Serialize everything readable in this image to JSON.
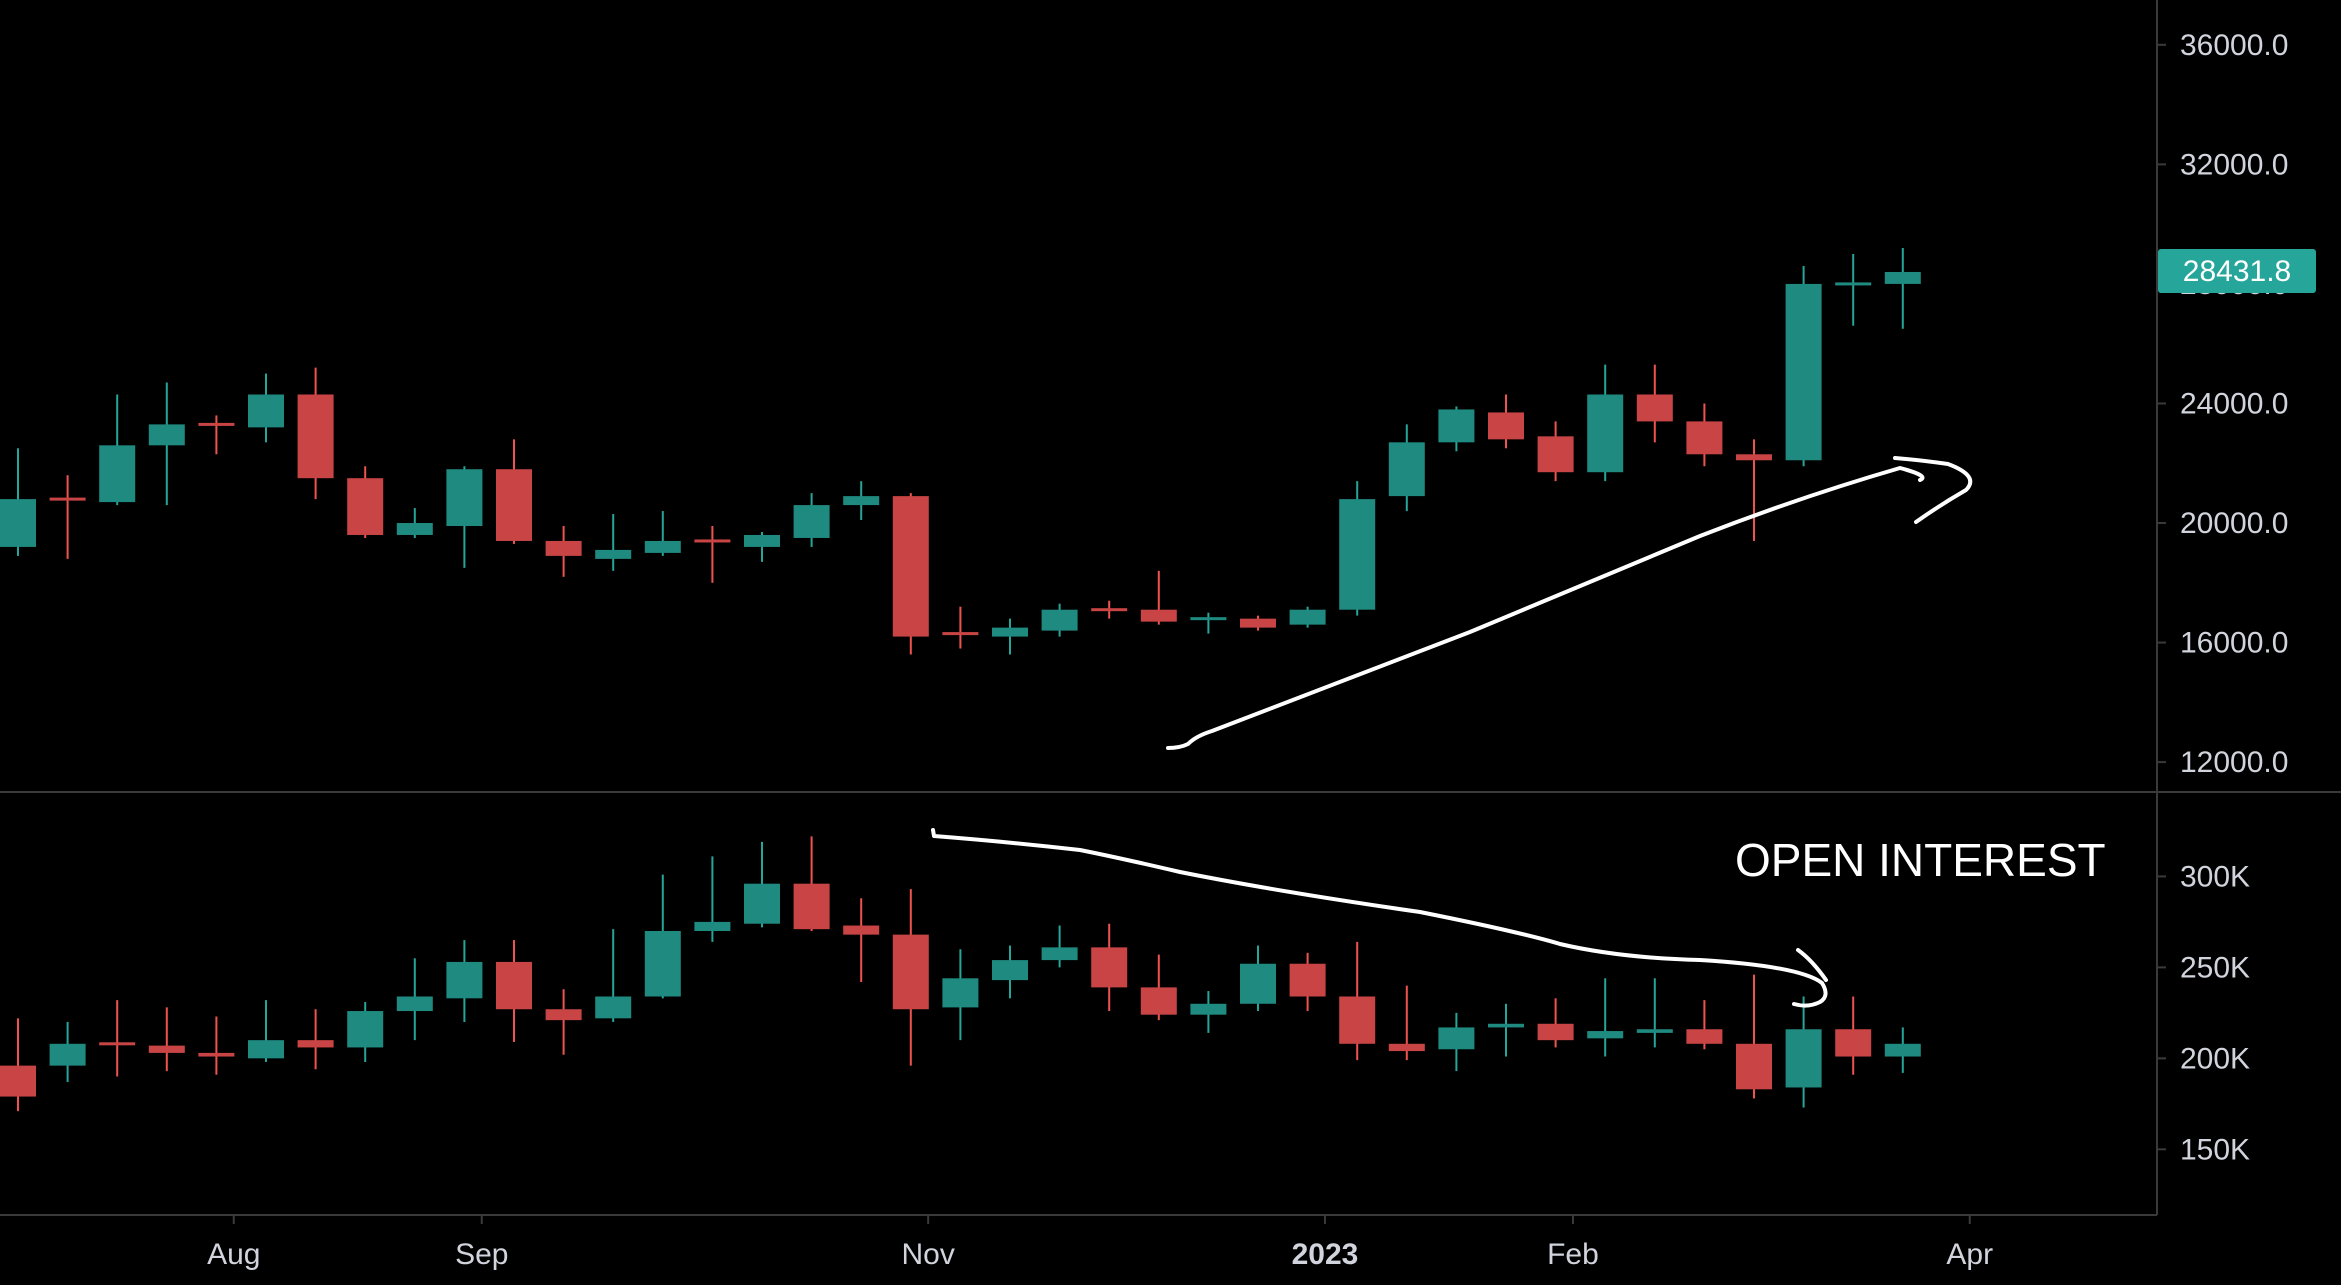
{
  "colors": {
    "background": "#000000",
    "up": "#26a69a",
    "down": "#ef5350",
    "up_body": "#1f8a80",
    "down_body": "#c94545",
    "axis_line": "#3a3a3a",
    "tick_text": "#d1d4dc",
    "annotation": "#ffffff",
    "price_tag": "#26a69a"
  },
  "last_price": "28431.8",
  "annotation_label": "OPEN INTEREST",
  "chart_data": [
    {
      "type": "candlestick",
      "name": "price",
      "interval": "weekly",
      "ylim": [
        11000,
        37500
      ],
      "y_ticks": [
        12000,
        16000,
        20000,
        24000,
        28000,
        32000,
        36000
      ],
      "y_tick_labels": [
        "12000.0",
        "16000.0",
        "20000.0",
        "24000.0",
        "28000.0",
        "32000.0",
        "36000.0"
      ],
      "last_value": 28431.8,
      "candles": [
        {
          "o": 19200,
          "h": 22500,
          "l": 18900,
          "c": 20800
        },
        {
          "o": 20800,
          "h": 21600,
          "l": 18800,
          "c": 20700
        },
        {
          "o": 20700,
          "h": 24300,
          "l": 20600,
          "c": 22600
        },
        {
          "o": 22600,
          "h": 24700,
          "l": 20600,
          "c": 23300
        },
        {
          "o": 23300,
          "h": 23600,
          "l": 22300,
          "c": 23200
        },
        {
          "o": 23200,
          "h": 25000,
          "l": 22700,
          "c": 24300
        },
        {
          "o": 24300,
          "h": 25200,
          "l": 20800,
          "c": 21500
        },
        {
          "o": 21500,
          "h": 21900,
          "l": 19500,
          "c": 19600
        },
        {
          "o": 19600,
          "h": 20500,
          "l": 19500,
          "c": 20000
        },
        {
          "o": 19900,
          "h": 21900,
          "l": 18500,
          "c": 21800
        },
        {
          "o": 21800,
          "h": 22800,
          "l": 19300,
          "c": 19400
        },
        {
          "o": 19400,
          "h": 19900,
          "l": 18200,
          "c": 18900
        },
        {
          "o": 18800,
          "h": 20300,
          "l": 18400,
          "c": 19100
        },
        {
          "o": 19000,
          "h": 20400,
          "l": 18900,
          "c": 19400
        },
        {
          "o": 19400,
          "h": 19900,
          "l": 18000,
          "c": 19300
        },
        {
          "o": 19200,
          "h": 19700,
          "l": 18700,
          "c": 19600
        },
        {
          "o": 19500,
          "h": 21000,
          "l": 19200,
          "c": 20600
        },
        {
          "o": 20600,
          "h": 21400,
          "l": 20100,
          "c": 20900
        },
        {
          "o": 20900,
          "h": 21000,
          "l": 15600,
          "c": 16200
        },
        {
          "o": 16300,
          "h": 17200,
          "l": 15800,
          "c": 16200
        },
        {
          "o": 16200,
          "h": 16800,
          "l": 15600,
          "c": 16500
        },
        {
          "o": 16400,
          "h": 17300,
          "l": 16200,
          "c": 17100
        },
        {
          "o": 17100,
          "h": 17400,
          "l": 16800,
          "c": 17000
        },
        {
          "o": 17100,
          "h": 18400,
          "l": 16600,
          "c": 16700
        },
        {
          "o": 16700,
          "h": 17000,
          "l": 16300,
          "c": 16800
        },
        {
          "o": 16800,
          "h": 16900,
          "l": 16400,
          "c": 16500
        },
        {
          "o": 16600,
          "h": 17200,
          "l": 16500,
          "c": 17100
        },
        {
          "o": 17100,
          "h": 21400,
          "l": 16900,
          "c": 20800
        },
        {
          "o": 20900,
          "h": 23300,
          "l": 20400,
          "c": 22700
        },
        {
          "o": 22700,
          "h": 23900,
          "l": 22400,
          "c": 23800
        },
        {
          "o": 23700,
          "h": 24300,
          "l": 22500,
          "c": 22800
        },
        {
          "o": 22900,
          "h": 23400,
          "l": 21400,
          "c": 21700
        },
        {
          "o": 21700,
          "h": 25300,
          "l": 21400,
          "c": 24300
        },
        {
          "o": 24300,
          "h": 25300,
          "l": 22700,
          "c": 23400
        },
        {
          "o": 23400,
          "h": 24000,
          "l": 21900,
          "c": 22300
        },
        {
          "o": 22300,
          "h": 22800,
          "l": 19400,
          "c": 22100
        },
        {
          "o": 22100,
          "h": 28600,
          "l": 21900,
          "c": 28000
        },
        {
          "o": 28000,
          "h": 29000,
          "l": 26600,
          "c": 28000
        },
        {
          "o": 28000,
          "h": 29200,
          "l": 26500,
          "c": 28400
        }
      ]
    },
    {
      "type": "candlestick",
      "name": "open interest",
      "ylim": [
        115000,
        342000
      ],
      "y_ticks": [
        150000,
        200000,
        250000,
        300000
      ],
      "y_tick_labels": [
        "150K",
        "200K",
        "250K",
        "300K"
      ],
      "candles": [
        {
          "o": 196000,
          "h": 222000,
          "l": 171000,
          "c": 179000
        },
        {
          "o": 196000,
          "h": 220000,
          "l": 187000,
          "c": 208000
        },
        {
          "o": 208000,
          "h": 232000,
          "l": 190000,
          "c": 207000
        },
        {
          "o": 207000,
          "h": 228000,
          "l": 193000,
          "c": 203000
        },
        {
          "o": 203000,
          "h": 223000,
          "l": 191000,
          "c": 201000
        },
        {
          "o": 200000,
          "h": 232000,
          "l": 198000,
          "c": 210000
        },
        {
          "o": 210000,
          "h": 227000,
          "l": 194000,
          "c": 206000
        },
        {
          "o": 206000,
          "h": 231000,
          "l": 198000,
          "c": 226000
        },
        {
          "o": 226000,
          "h": 255000,
          "l": 210000,
          "c": 234000
        },
        {
          "o": 233000,
          "h": 265000,
          "l": 220000,
          "c": 253000
        },
        {
          "o": 253000,
          "h": 265000,
          "l": 209000,
          "c": 227000
        },
        {
          "o": 227000,
          "h": 238000,
          "l": 202000,
          "c": 221000
        },
        {
          "o": 222000,
          "h": 271000,
          "l": 220000,
          "c": 234000
        },
        {
          "o": 234000,
          "h": 301000,
          "l": 233000,
          "c": 270000
        },
        {
          "o": 270000,
          "h": 311000,
          "l": 264000,
          "c": 275000
        },
        {
          "o": 274000,
          "h": 319000,
          "l": 272000,
          "c": 296000
        },
        {
          "o": 296000,
          "h": 322000,
          "l": 270000,
          "c": 271000
        },
        {
          "o": 273000,
          "h": 288000,
          "l": 242000,
          "c": 268000
        },
        {
          "o": 268000,
          "h": 293000,
          "l": 196000,
          "c": 227000
        },
        {
          "o": 228000,
          "h": 260000,
          "l": 210000,
          "c": 244000
        },
        {
          "o": 243000,
          "h": 262000,
          "l": 233000,
          "c": 254000
        },
        {
          "o": 254000,
          "h": 273000,
          "l": 250000,
          "c": 261000
        },
        {
          "o": 261000,
          "h": 274000,
          "l": 226000,
          "c": 239000
        },
        {
          "o": 239000,
          "h": 257000,
          "l": 221000,
          "c": 224000
        },
        {
          "o": 224000,
          "h": 237000,
          "l": 214000,
          "c": 230000
        },
        {
          "o": 230000,
          "h": 262000,
          "l": 226000,
          "c": 252000
        },
        {
          "o": 252000,
          "h": 258000,
          "l": 226000,
          "c": 234000
        },
        {
          "o": 234000,
          "h": 264000,
          "l": 199000,
          "c": 208000
        },
        {
          "o": 208000,
          "h": 240000,
          "l": 199000,
          "c": 204000
        },
        {
          "o": 205000,
          "h": 225000,
          "l": 193000,
          "c": 217000
        },
        {
          "o": 217000,
          "h": 230000,
          "l": 201000,
          "c": 219000
        },
        {
          "o": 219000,
          "h": 233000,
          "l": 206000,
          "c": 210000
        },
        {
          "o": 211000,
          "h": 244000,
          "l": 201000,
          "c": 215000
        },
        {
          "o": 214000,
          "h": 244000,
          "l": 206000,
          "c": 216000
        },
        {
          "o": 216000,
          "h": 232000,
          "l": 205000,
          "c": 208000
        },
        {
          "o": 208000,
          "h": 246000,
          "l": 178000,
          "c": 183000
        },
        {
          "o": 184000,
          "h": 234000,
          "l": 173000,
          "c": 216000
        },
        {
          "o": 216000,
          "h": 234000,
          "l": 191000,
          "c": 201000
        },
        {
          "o": 201000,
          "h": 217000,
          "l": 192000,
          "c": 208000
        }
      ]
    }
  ],
  "x_ticks": [
    {
      "label": "Aug",
      "index": 4.35,
      "bold": false
    },
    {
      "label": "Sep",
      "index": 9.35,
      "bold": false
    },
    {
      "label": "Nov",
      "index": 18.35,
      "bold": false
    },
    {
      "label": "2023",
      "index": 26.35,
      "bold": true
    },
    {
      "label": "Feb",
      "index": 31.35,
      "bold": false
    },
    {
      "label": "Apr",
      "index": 39.35,
      "bold": false
    }
  ]
}
